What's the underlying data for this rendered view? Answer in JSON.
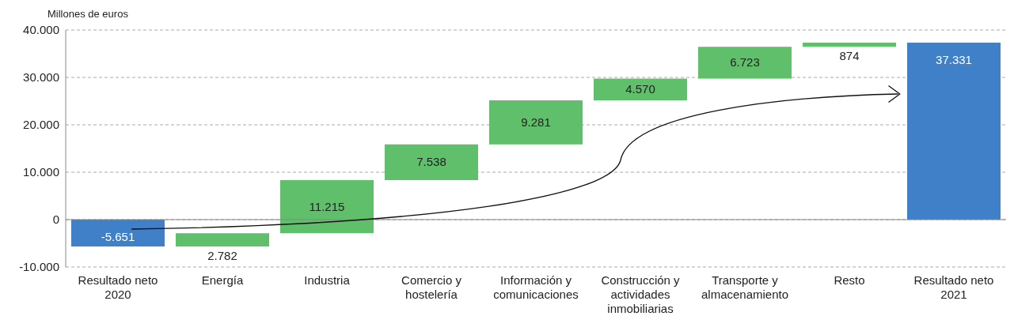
{
  "chart_data": {
    "type": "bar",
    "ylabel": "Millones de euros",
    "categories": [
      "Resultado neto 2020",
      "Energía",
      "Industria",
      "Comercio y hostelería",
      "Información y comunicaciones",
      "Construcción y actividades inmobiliarias",
      "Transporte y almacenamiento",
      "Resto",
      "Resultado neto 2021"
    ],
    "values": [
      -5651,
      2782,
      11215,
      7538,
      9281,
      4570,
      6723,
      874,
      37331
    ],
    "base": [
      0,
      -5651,
      -2869,
      8346,
      15884,
      25165,
      29735,
      36458,
      0
    ],
    "colors": [
      "#4080c8",
      "#5fbf6a",
      "#5fbf6a",
      "#5fbf6a",
      "#5fbf6a",
      "#5fbf6a",
      "#5fbf6a",
      "#5fbf6a",
      "#4080c8"
    ],
    "value_labels": [
      "-5.651",
      "2.782",
      "11.215",
      "7.538",
      "9.281",
      "4.570",
      "6.723",
      "874",
      "37.331"
    ],
    "ylim": [
      -10000,
      40000
    ],
    "yticks": [
      {
        "value": -10000,
        "label": "-10.000"
      },
      {
        "value": 0,
        "label": "0"
      },
      {
        "value": 10000,
        "label": "10.000"
      },
      {
        "value": 20000,
        "label": "20.000"
      },
      {
        "value": 30000,
        "label": "30.000"
      },
      {
        "value": 40000,
        "label": "40.000"
      }
    ],
    "grid": "y"
  }
}
